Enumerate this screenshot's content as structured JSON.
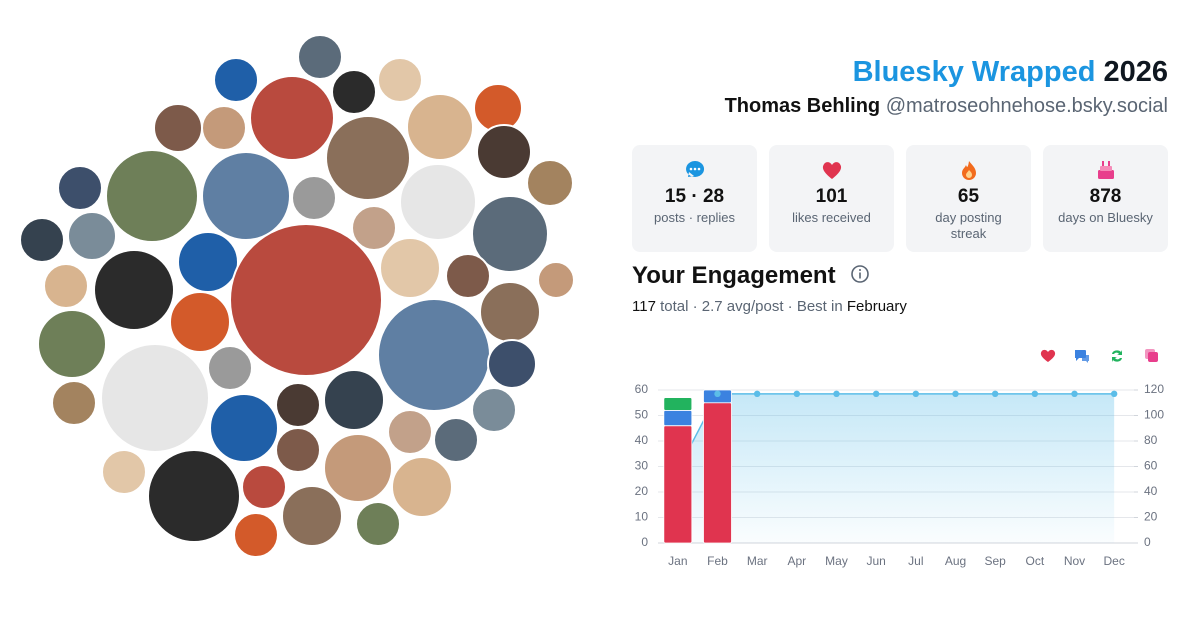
{
  "header": {
    "brand": "Bluesky Wrapped",
    "year": "2026",
    "name": "Thomas Behling",
    "handle": "@matroseohnehose.bsky.social"
  },
  "stats": [
    {
      "value": "15 · 28",
      "label": "posts · replies"
    },
    {
      "value": "101",
      "label": "likes received"
    },
    {
      "value": "65",
      "label": "day posting streak"
    },
    {
      "value": "878",
      "label": "days on Bluesky"
    }
  ],
  "engagement": {
    "heading": "Your Engagement",
    "total": "117",
    "middle": "total · 2.7 avg/post · Best in",
    "best": "February"
  },
  "chart_data": {
    "type": "bar",
    "categories": [
      "Jan",
      "Feb",
      "Mar",
      "Apr",
      "May",
      "Jun",
      "Jul",
      "Aug",
      "Sep",
      "Oct",
      "Nov",
      "Dec"
    ],
    "series": [
      {
        "color": "#e0344f",
        "values": [
          46,
          55,
          null,
          null,
          null,
          null,
          null,
          null,
          null,
          null,
          null,
          null
        ]
      },
      {
        "color": "#3b82e0",
        "values": [
          6,
          5,
          null,
          null,
          null,
          null,
          null,
          null,
          null,
          null,
          null,
          null
        ]
      },
      {
        "color": "#22b35e",
        "values": [
          5,
          0,
          null,
          null,
          null,
          null,
          null,
          null,
          null,
          null,
          null,
          null
        ]
      },
      {
        "color": "#e83e8c",
        "values": [
          0,
          0,
          null,
          null,
          null,
          null,
          null,
          null,
          null,
          null,
          null,
          null
        ]
      },
      {
        "type": "line",
        "axis": "y2",
        "color": "#5bbde8",
        "values": [
          57,
          117,
          117,
          117,
          117,
          117,
          117,
          117,
          117,
          117,
          117,
          117
        ]
      }
    ],
    "ylim": [
      0,
      60
    ],
    "yticks": [
      0,
      10,
      20,
      30,
      40,
      50,
      60
    ],
    "y2lim": [
      0,
      120
    ],
    "y2ticks": [
      0,
      20,
      40,
      60,
      80,
      100,
      120
    ],
    "grid": true
  }
}
